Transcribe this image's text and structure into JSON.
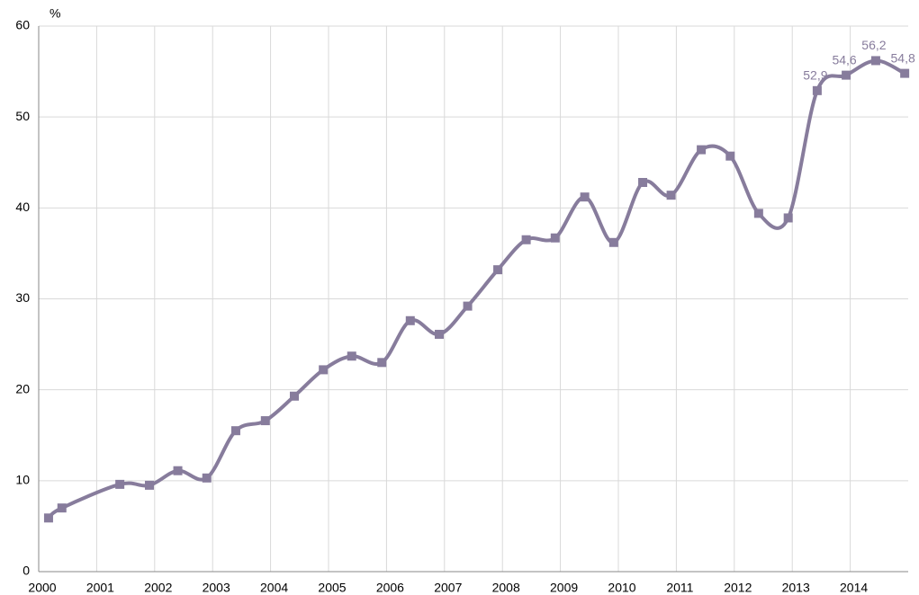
{
  "chart_data": {
    "type": "line",
    "y_label": "%",
    "x": [
      2000.17,
      2000.4,
      2001.4,
      2001.91,
      2002.4,
      2002.9,
      2003.4,
      2003.91,
      2004.41,
      2004.91,
      2005.4,
      2005.92,
      2006.41,
      2006.91,
      2007.4,
      2007.92,
      2008.41,
      2008.91,
      2009.42,
      2009.92,
      2010.42,
      2010.91,
      2011.43,
      2011.93,
      2012.42,
      2012.93,
      2013.43,
      2013.93,
      2014.44,
      2014.94
    ],
    "series": [
      {
        "name": "%",
        "color": "#877c9c",
        "values": [
          5.9,
          7.0,
          9.6,
          9.5,
          11.1,
          10.3,
          15.5,
          16.6,
          19.3,
          22.2,
          23.7,
          23.0,
          27.6,
          26.1,
          29.2,
          33.2,
          36.5,
          36.7,
          41.2,
          36.2,
          42.8,
          41.4,
          46.4,
          45.7,
          39.4,
          38.9,
          52.9,
          54.6,
          56.2,
          54.8
        ],
        "value_labels": [
          null,
          null,
          null,
          null,
          null,
          null,
          null,
          null,
          null,
          null,
          null,
          null,
          null,
          null,
          null,
          null,
          null,
          null,
          null,
          null,
          null,
          null,
          null,
          null,
          null,
          null,
          "52,9",
          "54,6",
          "56,2",
          "54,8"
        ]
      }
    ],
    "xlim": [
      2000,
      2015
    ],
    "xticks": [
      2000,
      2001,
      2002,
      2003,
      2004,
      2005,
      2006,
      2007,
      2008,
      2009,
      2010,
      2011,
      2012,
      2013,
      2014
    ],
    "ylim": [
      0,
      60
    ],
    "yticks": [
      0,
      10,
      20,
      30,
      40,
      50,
      60
    ],
    "grid": true
  }
}
